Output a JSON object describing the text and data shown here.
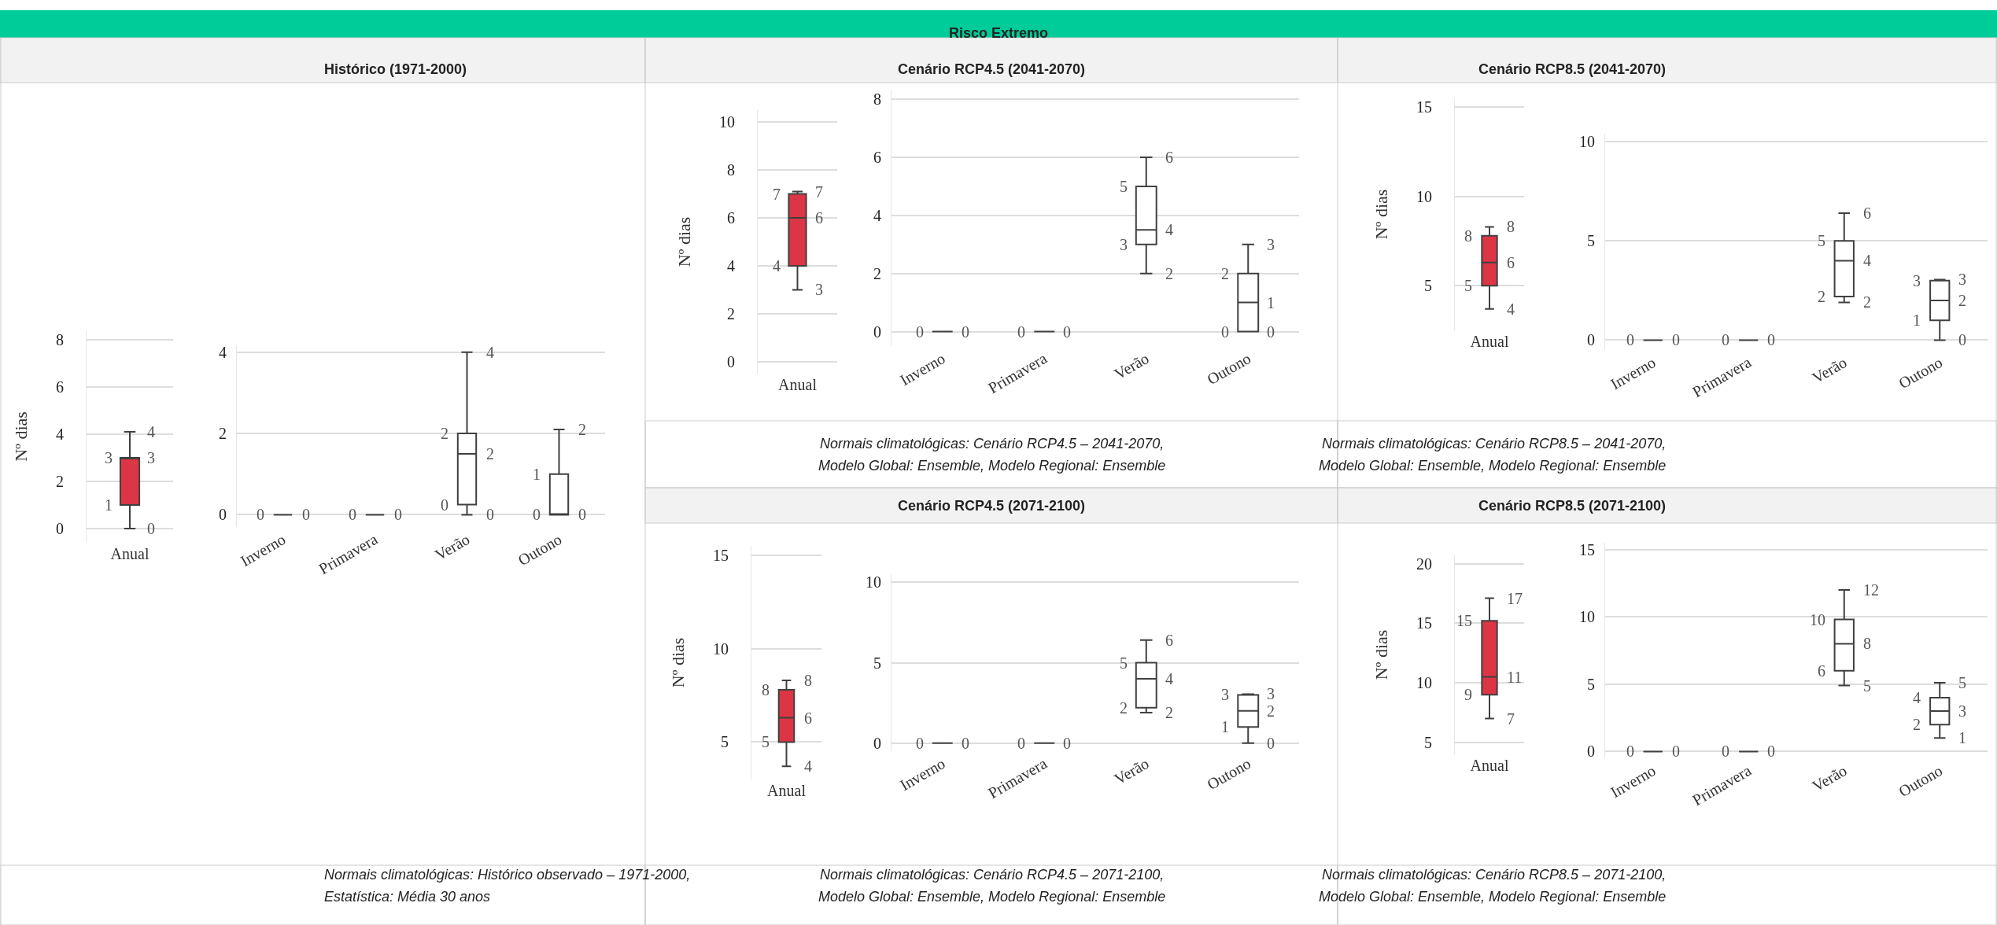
{
  "chart_data": [
    {
      "type": "box",
      "ylabel": "Nº dias",
      "categories": [
        "Anual"
      ],
      "colors": [
        "#dc3545"
      ],
      "ylim": [
        -0.6,
        8.4
      ],
      "yticks": [
        0,
        2,
        4,
        6,
        8
      ],
      "grid": "y",
      "boxes": [
        {
          "low": 0,
          "q1": 1,
          "median": 3,
          "q3": 3,
          "high": 4.1
        }
      ],
      "value_labels": [
        {
          "low": "0",
          "q1": "1",
          "median": "3",
          "q3": "3",
          "high": "4"
        }
      ]
    },
    {
      "type": "box",
      "subtitle": "Histórico (1971-2000)",
      "annotations": [
        "Normais climatológicas: Histórico observado – 1971-2000,",
        "Estatística: Média 30 anos"
      ],
      "categories": [
        "Inverno",
        "Primavera",
        "Verão",
        "Outono"
      ],
      "colors": [
        "#404040",
        "#404040",
        "#ffffff",
        "#ffffff"
      ],
      "ylim": [
        -0.3,
        4.15
      ],
      "yticks": [
        0,
        2,
        4
      ],
      "grid": "y",
      "boxes": [
        {
          "low": 0,
          "q1": 0,
          "median": 0,
          "q3": 0,
          "high": 0
        },
        {
          "low": 0,
          "q1": 0,
          "median": 0,
          "q3": 0,
          "high": 0
        },
        {
          "low": 0,
          "q1": 0.25,
          "median": 1.5,
          "q3": 2,
          "high": 4
        },
        {
          "low": 0,
          "q1": 0,
          "median": 0,
          "q3": 1,
          "high": 2.1
        }
      ],
      "value_labels": [
        {
          "low": "0",
          "q1": "0",
          "median": null,
          "q3": null,
          "high": null
        },
        {
          "low": "0",
          "q1": "0",
          "median": null,
          "q3": null,
          "high": null
        },
        {
          "low": "0",
          "q1": "0",
          "median": "2",
          "q3": "2",
          "high": "4"
        },
        {
          "low": "0",
          "q1": "0",
          "median": null,
          "q3": "1",
          "high": "2"
        }
      ]
    },
    {
      "type": "box",
      "ylabel": "Nº dias",
      "categories": [
        "Anual"
      ],
      "colors": [
        "#dc3545"
      ],
      "ylim": [
        -0.5,
        10.5
      ],
      "yticks": [
        0,
        2,
        4,
        6,
        8,
        10
      ],
      "grid": "y",
      "boxes": [
        {
          "low": 3,
          "q1": 4,
          "median": 6,
          "q3": 7,
          "high": 7.1
        }
      ],
      "value_labels": [
        {
          "low": "3",
          "q1": "4",
          "median": "6",
          "q3": "7",
          "high": "7"
        }
      ]
    },
    {
      "type": "box",
      "title": "Risco Extremo",
      "subtitle": "Cenário RCP4.5 (2041-2070)",
      "annotations": [
        "Normais climatológicas: Cenário RCP4.5 – 2041-2070,",
        "Modelo Global: Ensemble, Modelo Regional: Ensemble"
      ],
      "categories": [
        "Inverno",
        "Primavera",
        "Verão",
        "Outono"
      ],
      "colors": [
        "#404040",
        "#404040",
        "#ffffff",
        "#ffffff"
      ],
      "ylim": [
        -0.5,
        8.3
      ],
      "yticks": [
        0,
        2,
        4,
        6,
        8
      ],
      "grid": "y",
      "boxes": [
        {
          "low": 0,
          "q1": 0,
          "median": 0,
          "q3": 0,
          "high": 0
        },
        {
          "low": 0,
          "q1": 0,
          "median": 0,
          "q3": 0,
          "high": 0
        },
        {
          "low": 2,
          "q1": 3,
          "median": 3.5,
          "q3": 5,
          "high": 6
        },
        {
          "low": 0,
          "q1": 0,
          "median": 1,
          "q3": 2,
          "high": 3
        }
      ],
      "value_labels": [
        {
          "low": "0",
          "q1": "0",
          "median": null,
          "q3": null,
          "high": null
        },
        {
          "low": "0",
          "q1": "0",
          "median": null,
          "q3": null,
          "high": null
        },
        {
          "low": "2",
          "q1": "3",
          "median": "4",
          "q3": "5",
          "high": "6"
        },
        {
          "low": "0",
          "q1": "0",
          "median": "1",
          "q3": "2",
          "high": "3"
        }
      ]
    },
    {
      "type": "box",
      "ylabel": "Nº dias",
      "categories": [
        "Anual"
      ],
      "colors": [
        "#dc3545"
      ],
      "ylim": [
        2.5,
        15.5
      ],
      "yticks": [
        5,
        10,
        15
      ],
      "grid": "y",
      "boxes": [
        {
          "low": 3.7,
          "q1": 5,
          "median": 6.3,
          "q3": 7.8,
          "high": 8.3
        }
      ],
      "value_labels": [
        {
          "low": "4",
          "q1": "5",
          "median": "6",
          "q3": "8",
          "high": "8"
        }
      ]
    },
    {
      "type": "box",
      "subtitle": "Cenário RCP8.5 (2041-2070)",
      "annotations": [
        "Normais climatológicas: Cenário RCP8.5 – 2041-2070,",
        "Modelo Global: Ensemble, Modelo Regional: Ensemble"
      ],
      "categories": [
        "Inverno",
        "Primavera",
        "Verão",
        "Outono"
      ],
      "colors": [
        "#404040",
        "#404040",
        "#ffffff",
        "#ffffff"
      ],
      "ylim": [
        -0.5,
        10.4
      ],
      "yticks": [
        0,
        5,
        10
      ],
      "grid": "y",
      "boxes": [
        {
          "low": 0,
          "q1": 0,
          "median": 0,
          "q3": 0,
          "high": 0
        },
        {
          "low": 0,
          "q1": 0,
          "median": 0,
          "q3": 0,
          "high": 0
        },
        {
          "low": 1.9,
          "q1": 2.2,
          "median": 4,
          "q3": 5,
          "high": 6.4
        },
        {
          "low": 0,
          "q1": 1,
          "median": 2,
          "q3": 3,
          "high": 3.05
        }
      ],
      "value_labels": [
        {
          "low": "0",
          "q1": "0",
          "median": null,
          "q3": null,
          "high": null
        },
        {
          "low": "0",
          "q1": "0",
          "median": null,
          "q3": null,
          "high": null
        },
        {
          "low": "2",
          "q1": "2",
          "median": "4",
          "q3": "5",
          "high": "6"
        },
        {
          "low": "0",
          "q1": "1",
          "median": "2",
          "q3": "3",
          "high": "3"
        }
      ]
    },
    {
      "type": "box",
      "ylabel": "Nº dias",
      "categories": [
        "Anual"
      ],
      "colors": [
        "#dc3545"
      ],
      "ylim": [
        3,
        15.5
      ],
      "yticks": [
        5,
        10,
        15
      ],
      "grid": "y",
      "boxes": [
        {
          "low": 3.7,
          "q1": 5,
          "median": 6.3,
          "q3": 7.8,
          "high": 8.3
        }
      ],
      "value_labels": [
        {
          "low": "4",
          "q1": "5",
          "median": "6",
          "q3": "8",
          "high": "8"
        }
      ]
    },
    {
      "type": "box",
      "subtitle": "Cenário RCP4.5 (2071-2100)",
      "annotations": [
        "Normais climatológicas: Cenário RCP4.5 – 2071-2100,",
        "Modelo Global: Ensemble, Modelo Regional: Ensemble"
      ],
      "categories": [
        "Inverno",
        "Primavera",
        "Verão",
        "Outono"
      ],
      "colors": [
        "#404040",
        "#404040",
        "#ffffff",
        "#ffffff"
      ],
      "ylim": [
        -0.5,
        10.5
      ],
      "yticks": [
        0,
        5,
        10
      ],
      "grid": "y",
      "boxes": [
        {
          "low": 0,
          "q1": 0,
          "median": 0,
          "q3": 0,
          "high": 0
        },
        {
          "low": 0,
          "q1": 0,
          "median": 0,
          "q3": 0,
          "high": 0
        },
        {
          "low": 1.9,
          "q1": 2.2,
          "median": 4,
          "q3": 5,
          "high": 6.4
        },
        {
          "low": 0,
          "q1": 1,
          "median": 2,
          "q3": 3,
          "high": 3.05
        }
      ],
      "value_labels": [
        {
          "low": "0",
          "q1": "0",
          "median": null,
          "q3": null,
          "high": null
        },
        {
          "low": "0",
          "q1": "0",
          "median": null,
          "q3": null,
          "high": null
        },
        {
          "low": "2",
          "q1": "2",
          "median": "4",
          "q3": "5",
          "high": "6"
        },
        {
          "low": "0",
          "q1": "1",
          "median": "2",
          "q3": "3",
          "high": "3"
        }
      ]
    },
    {
      "type": "box",
      "ylabel": "Nº dias",
      "categories": [
        "Anual"
      ],
      "colors": [
        "#dc3545"
      ],
      "ylim": [
        4,
        20.7
      ],
      "yticks": [
        5,
        10,
        15,
        20
      ],
      "grid": "y",
      "boxes": [
        {
          "low": 7,
          "q1": 9,
          "median": 10.5,
          "q3": 15.2,
          "high": 17.1
        }
      ],
      "value_labels": [
        {
          "low": "7",
          "q1": "9",
          "median": "11",
          "q3": "15",
          "high": "17"
        }
      ]
    },
    {
      "type": "box",
      "subtitle": "Cenário RCP8.5 (2071-2100)",
      "annotations": [
        "Normais climatológicas: Cenário RCP8.5 – 2071-2100,",
        "Modelo Global: Ensemble, Modelo Regional: Ensemble"
      ],
      "categories": [
        "Inverno",
        "Primavera",
        "Verão",
        "Outono"
      ],
      "colors": [
        "#404040",
        "#404040",
        "#ffffff",
        "#ffffff"
      ],
      "ylim": [
        -0.5,
        15.5
      ],
      "yticks": [
        0,
        5,
        10,
        15
      ],
      "grid": "y",
      "boxes": [
        {
          "low": 0,
          "q1": 0,
          "median": 0,
          "q3": 0,
          "high": 0
        },
        {
          "low": 0,
          "q1": 0,
          "median": 0,
          "q3": 0,
          "high": 0
        },
        {
          "low": 4.9,
          "q1": 6,
          "median": 8,
          "q3": 9.8,
          "high": 12
        },
        {
          "low": 1,
          "q1": 2,
          "median": 3,
          "q3": 4,
          "high": 5.1
        }
      ],
      "value_labels": [
        {
          "low": "0",
          "q1": "0",
          "median": null,
          "q3": null,
          "high": null
        },
        {
          "low": "0",
          "q1": "0",
          "median": null,
          "q3": null,
          "high": null
        },
        {
          "low": "5",
          "q1": "6",
          "median": "8",
          "q3": "10",
          "high": "12"
        },
        {
          "low": "1",
          "q1": "2",
          "median": "3",
          "q3": "4",
          "high": "5"
        }
      ]
    }
  ]
}
